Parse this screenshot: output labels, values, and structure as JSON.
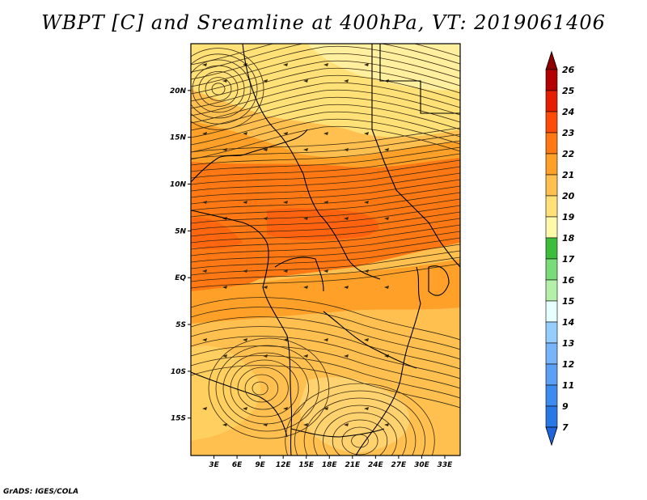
{
  "title": "WBPT [C] and Sreamline at 400hPa, VT: 2019061406",
  "footer": "GrADS: IGES/COLA",
  "chart_data": {
    "type": "heatmap",
    "title": "WBPT [C] and Sreamline at 400hPa, VT: 2019061406",
    "x_tick_labels": [
      "3E",
      "6E",
      "9E",
      "12E",
      "15E",
      "18E",
      "21E",
      "24E",
      "27E",
      "30E",
      "33E"
    ],
    "x_ticks": [
      3,
      6,
      9,
      12,
      15,
      18,
      21,
      24,
      27,
      30,
      33
    ],
    "y_tick_labels": [
      "20N",
      "15N",
      "10N",
      "5N",
      "EQ",
      "5S",
      "10S",
      "15S"
    ],
    "y_ticks": [
      20,
      15,
      10,
      5,
      0,
      -5,
      -10,
      -15
    ],
    "xlim": [
      0,
      35
    ],
    "ylim": [
      -19,
      25
    ],
    "colorbar": {
      "labels": [
        "7",
        "9",
        "11",
        "12",
        "13",
        "14",
        "15",
        "16",
        "17",
        "18",
        "19",
        "20",
        "21",
        "22",
        "23",
        "24",
        "25",
        "26"
      ],
      "colors": [
        "#1e64dc",
        "#2878e6",
        "#3c8cf0",
        "#5aa0f5",
        "#78b4fa",
        "#96cdff",
        "#e6ffff",
        "#b4f0aa",
        "#78dc78",
        "#3cbe3c",
        "#fffaaa",
        "#ffe178",
        "#ffc050",
        "#ffa028",
        "#ff7814",
        "#ff4b0a",
        "#e61e00",
        "#b40000",
        "#8c0000"
      ]
    },
    "field_description_colors": {
      "north": "#ffe178",
      "equatorial_band": "#ff7814",
      "south": "#ffc050"
    }
  }
}
